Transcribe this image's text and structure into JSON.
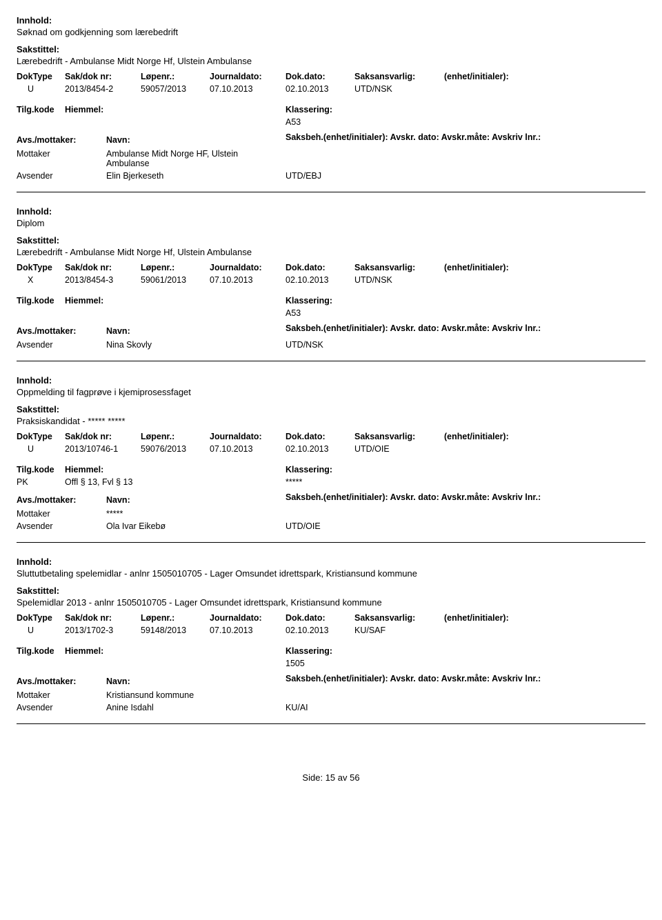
{
  "labels": {
    "innhold": "Innhold:",
    "sakstittel": "Sakstittel:",
    "doktype": "DokType",
    "sakdok": "Sak/dok nr:",
    "lopenr": "Løpenr.:",
    "jdato": "Journaldato:",
    "ddato": "Dok.dato:",
    "saksansv": "Saksansvarlig:",
    "enhet": "(enhet/initialer):",
    "tilgkode": "Tilg.kode",
    "hjemmel": "Hiemmel:",
    "klass": "Klassering:",
    "avsmott": "Avs./mottaker:",
    "navn": "Navn:",
    "saksbeh_line": "Saksbeh.(enhet/initialer): Avskr. dato:  Avskr.måte:  Avskriv lnr.:",
    "mottaker": "Mottaker",
    "avsender": "Avsender"
  },
  "records": [
    {
      "innhold": "Søknad om godkjenning som lærebedrift",
      "sakstittel": "Lærebedrift - Ambulanse Midt Norge Hf, Ulstein Ambulanse",
      "doktype": "U",
      "sakdok": "2013/8454-2",
      "lopenr": "59057/2013",
      "jdato": "07.10.2013",
      "ddato": "02.10.2013",
      "saksansv": "UTD/NSK",
      "tilgkode": "",
      "hjemmel": "",
      "klass": "A53",
      "parties": [
        {
          "role": "Mottaker",
          "name": "Ambulanse Midt Norge HF, Ulstein Ambulanse",
          "unit": ""
        },
        {
          "role": "Avsender",
          "name": "Elin Bjerkeseth",
          "unit": "UTD/EBJ"
        }
      ]
    },
    {
      "innhold": "Diplom",
      "sakstittel": "Lærebedrift - Ambulanse Midt Norge Hf, Ulstein Ambulanse",
      "doktype": "X",
      "sakdok": "2013/8454-3",
      "lopenr": "59061/2013",
      "jdato": "07.10.2013",
      "ddato": "02.10.2013",
      "saksansv": "UTD/NSK",
      "tilgkode": "",
      "hjemmel": "",
      "klass": "A53",
      "parties": [
        {
          "role": "Avsender",
          "name": "Nina Skovly",
          "unit": "UTD/NSK"
        }
      ]
    },
    {
      "innhold": "Oppmelding til fagprøve i kjemiprosessfaget",
      "sakstittel": "Praksiskandidat - ***** *****",
      "doktype": "U",
      "sakdok": "2013/10746-1",
      "lopenr": "59076/2013",
      "jdato": "07.10.2013",
      "ddato": "02.10.2013",
      "saksansv": "UTD/OIE",
      "tilgkode": "PK",
      "hjemmel": "Offl § 13, Fvl § 13",
      "klass": "*****",
      "parties": [
        {
          "role": "Mottaker",
          "name": "*****",
          "unit": ""
        },
        {
          "role": "Avsender",
          "name": "Ola Ivar Eikebø",
          "unit": "UTD/OIE"
        }
      ]
    },
    {
      "innhold": "Sluttutbetaling spelemidlar - anlnr 1505010705 - Lager Omsundet idrettspark, Kristiansund kommune",
      "sakstittel": "Spelemidlar 2013 - anlnr 1505010705 - Lager Omsundet idrettspark, Kristiansund kommune",
      "doktype": "U",
      "sakdok": "2013/1702-3",
      "lopenr": "59148/2013",
      "jdato": "07.10.2013",
      "ddato": "02.10.2013",
      "saksansv": "KU/SAF",
      "tilgkode": "",
      "hjemmel": "",
      "klass": "1505",
      "parties": [
        {
          "role": "Mottaker",
          "name": "Kristiansund kommune",
          "unit": ""
        },
        {
          "role": "Avsender",
          "name": "Anine Isdahl",
          "unit": "KU/AI"
        }
      ]
    }
  ],
  "footer": {
    "side": "Side:",
    "page": "15 av  56"
  }
}
